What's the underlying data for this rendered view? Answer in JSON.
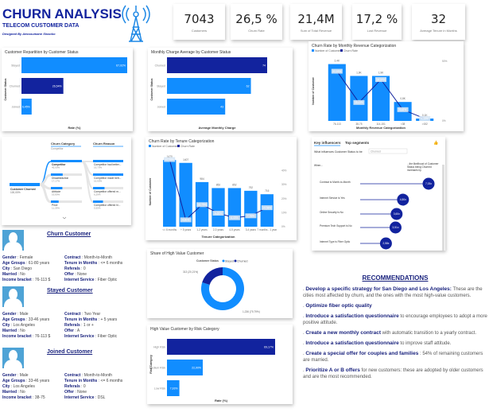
{
  "header": {
    "title": "CHURN ANALYSIS",
    "subtitle": "TELECOM CUSTOMER DATA",
    "designer": "Designed By Aessoumane Sissoko"
  },
  "kpis": [
    {
      "value": "7043",
      "label": "Customers"
    },
    {
      "value": "26,5 %",
      "label": "Churn Rate"
    },
    {
      "value": "21,4M",
      "label": "Sum of Total Revenue"
    },
    {
      "value": "17,2 %",
      "label": "Lost Revenue"
    },
    {
      "value": "32",
      "label": "Average Tenure in Months"
    }
  ],
  "colors": {
    "light": "#118dff",
    "dark": "#12239e",
    "navy": "#1a237e"
  },
  "chart_data": [
    {
      "id": "repartition",
      "type": "bar",
      "orientation": "horizontal",
      "title": "Customer Repartition by Customer Status",
      "xlabel": "Rate (%)",
      "ylabel": "Customer Status",
      "categories": [
        "Stayed",
        "Churned",
        "Joined"
      ],
      "values": [
        67.02,
        26.54,
        6.45
      ],
      "labels": [
        "67,02%",
        "26,54%",
        "6,45%"
      ],
      "colors": [
        "#118dff",
        "#12239e",
        "#118dff"
      ]
    },
    {
      "id": "monthly_charge",
      "type": "bar",
      "orientation": "horizontal",
      "title": "Monthly Charge Average by Customer Status",
      "xlabel": "Average Monthly Charge",
      "ylabel": "Customer Status",
      "categories": [
        "Churned",
        "Stayed",
        "Joined"
      ],
      "values": [
        74,
        62,
        43
      ],
      "labels": [
        "74",
        "62",
        "43"
      ],
      "colors": [
        "#12239e",
        "#118dff",
        "#118dff"
      ]
    },
    {
      "id": "revenue_cat",
      "type": "bar+line",
      "title": "Churn Rate by Monthly Revenue Categorization",
      "legend": [
        "Number of Customer",
        "Churn Rate"
      ],
      "xlabel": "Monthly Revenue Categorization",
      "ylabel": "Number of Customer",
      "categories": [
        "76-113",
        "38-75",
        "114-151",
        "<38",
        ">152"
      ],
      "bars": [
        2400,
        1900,
        1900,
        800,
        100
      ],
      "bar_labels": [
        "2,4K",
        "1,9K",
        "1,9K",
        "0,8K",
        "0,1K"
      ],
      "line": [
        41.63,
        15.43,
        34.67,
        9.45,
        1.96
      ],
      "line_labels": [
        "41,63%",
        "15,43%",
        "34,67%",
        "9,45%",
        "1,96%"
      ],
      "y2ticks": [
        "50%",
        "0%"
      ],
      "y2max": 50
    },
    {
      "id": "tenure",
      "type": "bar+line",
      "title": "Churn Rate by Tenure Categorization",
      "legend": [
        "Number of Customer",
        "Churn Rate"
      ],
      "xlabel": "Tenure Categorization",
      "ylabel": "Number of Customer",
      "categories": [
        "<= 6 months",
        "+ 5 years",
        "1-2 years",
        "2-3 years",
        "4-5 years",
        "3-4 years",
        "7 months - 1 year"
      ],
      "bars": [
        1470,
        1407,
        984,
        852,
        852,
        792,
        716
      ],
      "bar_labels": [
        "1470",
        "1407",
        "984",
        "852",
        "852",
        "792",
        "716"
      ],
      "line": [
        47.98,
        4.9,
        15.75,
        9.65,
        6.4,
        7.78,
        13.58
      ],
      "line_labels": [
        "47,98%",
        "4,90%",
        "15,75%",
        "9,65%",
        "6,40%",
        "7,78%",
        "13,58%"
      ],
      "y2ticks": [
        "40%",
        "30%",
        "20%",
        "10%",
        "0%"
      ],
      "y2max": 50
    },
    {
      "id": "high_value_share",
      "type": "pie",
      "title": "Share of High Value Customer",
      "legend_title": "Customer Status",
      "legend": [
        "Stayed",
        "Churned"
      ],
      "values": [
        1236,
        313
      ],
      "labels": [
        "1,236 (79,79%)",
        "313 (20,21%)"
      ]
    },
    {
      "id": "risk",
      "type": "bar",
      "orientation": "horizontal",
      "title": "High Value Customer by Risk Category",
      "xlabel": "Rate (%)",
      "ylabel": "Risk Category",
      "categories": [
        "High Risk",
        "Medium Risk",
        "Low Risk"
      ],
      "values": [
        69.17,
        22.9,
        7.93
      ],
      "labels": [
        "69,17%",
        "22,90%",
        "7,93%"
      ],
      "colors": [
        "#12239e",
        "#118dff",
        "#118dff"
      ]
    }
  ],
  "decomp": {
    "col1": "Churn Category",
    "col1_sel": "Competitor",
    "col2": "Churn Reason",
    "root": "Customer Churned",
    "root_val": "100,00%",
    "cats": [
      {
        "name": "Competitor",
        "val": "45,00%",
        "p": 1
      },
      {
        "name": "Dissatisfaction",
        "val": "17,17%",
        "p": 0.38
      },
      {
        "name": "Attitude",
        "val": "16,80%",
        "p": 0.37
      },
      {
        "name": "Price",
        "val": "11,29%",
        "p": 0.25
      }
    ],
    "reasons": [
      {
        "name": "Competitor had better...",
        "val": "16,70%",
        "p": 1
      },
      {
        "name": "Competitor made bett...",
        "val": "16,60%",
        "p": 1
      },
      {
        "name": "Competitor offered m...",
        "val": "6,29%",
        "p": 0.38
      },
      {
        "name": "Competitor offered hi...",
        "val": "5,55%",
        "p": 0.33
      }
    ]
  },
  "influencers": {
    "tab1": "Key influencers",
    "tab2": "Top segments",
    "question": "What influences Customer Status to be",
    "dropdown": "Churned",
    "when": "When...",
    "likelihood": "...the likelihood of Customer Status being Churned increases by",
    "items": [
      {
        "label": "Contract is Month-to-Month",
        "value": "7,03x",
        "f": 1
      },
      {
        "label": "Internet Service is Yes",
        "value": "4,50x",
        "f": 0.52
      },
      {
        "label": "Online Security is No",
        "value": "3,60x",
        "f": 0.4
      },
      {
        "label": "Premium Tech Support is No",
        "value": "3,51x",
        "f": 0.38
      },
      {
        "label": "Internet Type is Fiber Optic",
        "value": "2,58x",
        "f": 0.2
      }
    ]
  },
  "profiles": [
    {
      "title": "Churn Customer",
      "gender": "Female",
      "age": "61-80 years",
      "city": "San Diego",
      "married": "No",
      "income": "76-113 $",
      "contract": "Month-to-Month",
      "tenure": "<= 6 months",
      "referrals": "0",
      "offer": "None",
      "internet": "Fiber Optic"
    },
    {
      "title": "Stayed Customer",
      "gender": "Male",
      "age": "33-46 years",
      "city": "Los Angeles",
      "married": "No",
      "income": "76-113 $",
      "contract": "Two Year",
      "tenure": "+ 5 years",
      "referrals": "1 or +",
      "offer": "A",
      "internet": "Fiber Optic"
    },
    {
      "title": "Joined Customer",
      "gender": "Male",
      "age": "33-46 years",
      "city": "Los Angeles",
      "married": "No",
      "income": "38-75",
      "contract": "Month-to-Month",
      "tenure": "<= 6 months",
      "referrals": "0",
      "offer": "None",
      "internet": "DSL"
    }
  ],
  "profile_labels": {
    "gender": "Gender",
    "age": "Age Groups",
    "city": "City",
    "married": "Married",
    "income": "Income bracket",
    "contract": "Contract",
    "tenure": "Tenure in Months",
    "referrals": "Referals",
    "offer": "Offer",
    "internet": "Internet Service"
  },
  "recommendations": {
    "title": "RECOMMENDATIONS",
    "items": [
      {
        "bold": "Develop a specific strategy for San Diego and Los Angeles:",
        "text": " These are the cities most affected by churn, and the ones with the most high-value customers."
      },
      {
        "bold": "Optimize fiber optic quality",
        "text": ""
      },
      {
        "bold": "Introduce a satisfaction questionnaire",
        "text": " to encourage employees to adopt a more positive attitude."
      },
      {
        "bold": "Create a new monthly contract",
        "text": " with automatic transition to a yearly contract."
      },
      {
        "bold": "Introduce a satisfaction questionnaire",
        "text": " to improve staff attitude."
      },
      {
        "bold": "Create a special offer for couples and families",
        "text": " : 54% of remaining customers are married."
      },
      {
        "bold": "Prioritize A or B offers",
        "text": " for new customers: these are adopted by older customers and are the most recommended."
      }
    ]
  }
}
